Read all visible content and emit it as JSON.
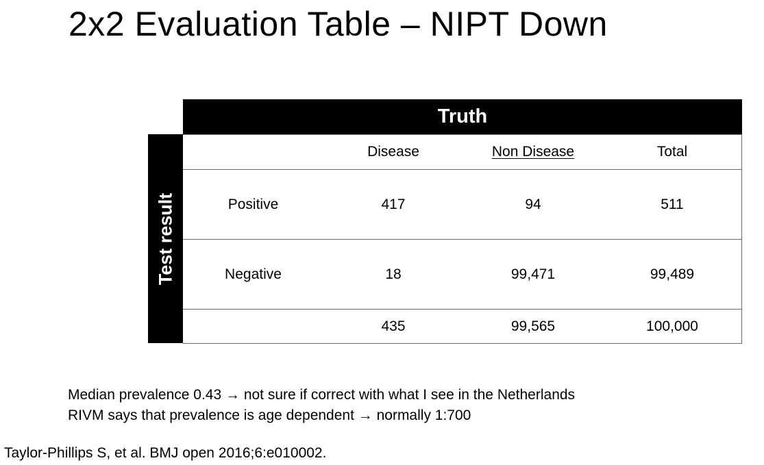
{
  "title": "2x2 Evaluation Table – NIPT Down",
  "table": {
    "column_group_label": "Truth",
    "row_group_label": "Test result",
    "headers": [
      "",
      "Disease",
      "Non Disease",
      "Total"
    ],
    "rows": [
      [
        "Positive",
        "417",
        "94",
        "511"
      ],
      [
        "Negative",
        "18",
        "99,471",
        "99,489"
      ],
      [
        "",
        "435",
        "99,565",
        "100,000"
      ]
    ]
  },
  "notes": [
    "Median prevalence 0.43 → not sure if correct with what I see in the Netherlands",
    "RIVM says that prevalence is age dependent → normally 1:700"
  ],
  "reference": "Taylor-Phillips S, et al. BMJ open 2016;6:e010002."
}
